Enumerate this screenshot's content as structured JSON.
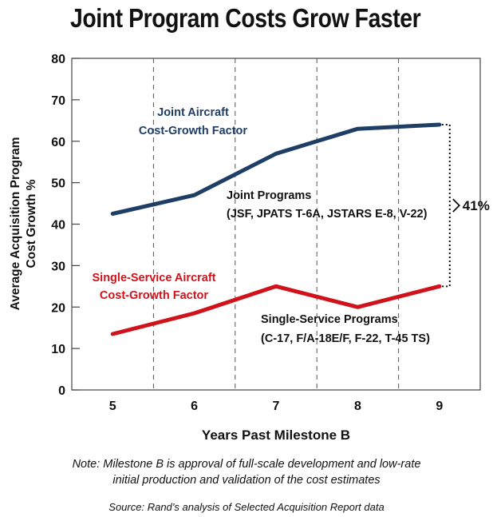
{
  "title": "Joint Program Costs Grow Faster",
  "chart_data": {
    "type": "line",
    "title": "Joint Program Costs Grow Faster",
    "xlabel": "Years Past Milestone B",
    "ylabel_line1": "Average Acquisition Program",
    "ylabel_line2": "Cost Growth %",
    "categories": [
      5,
      6,
      7,
      8,
      9
    ],
    "ylim": [
      0,
      80
    ],
    "yticks": [
      0,
      10,
      20,
      30,
      40,
      50,
      60,
      70,
      80
    ],
    "grid": "vertical dashed",
    "series": [
      {
        "name": "Joint Aircraft Cost-Growth Factor",
        "color": "#1f3e66",
        "values": [
          42.5,
          47,
          57,
          63,
          64
        ],
        "label_line1": "Joint Aircraft",
        "label_line2": "Cost-Growth Factor",
        "programs_line1": "Joint Programs",
        "programs_line2": "(JSF, JPATS T-6A, JSTARS E-8, V-22)"
      },
      {
        "name": "Single-Service Aircraft Cost-Growth Factor",
        "color": "#d0121b",
        "values": [
          13.5,
          18.5,
          25,
          20,
          25
        ],
        "label_line1": "Single-Service Aircraft",
        "label_line2": "Cost-Growth Factor",
        "programs_line1": "Single-Service Programs",
        "programs_line2": "(C-17, F/A-18E/F, F-22, T-45 TS)"
      }
    ],
    "annotation": "41%"
  },
  "note_line1": "Note: Milestone B is approval of full-scale development and low-rate",
  "note_line2": "initial production and validation of the cost estimates",
  "source": "Source: Rand’s analysis of Selected Acquisition Report data"
}
